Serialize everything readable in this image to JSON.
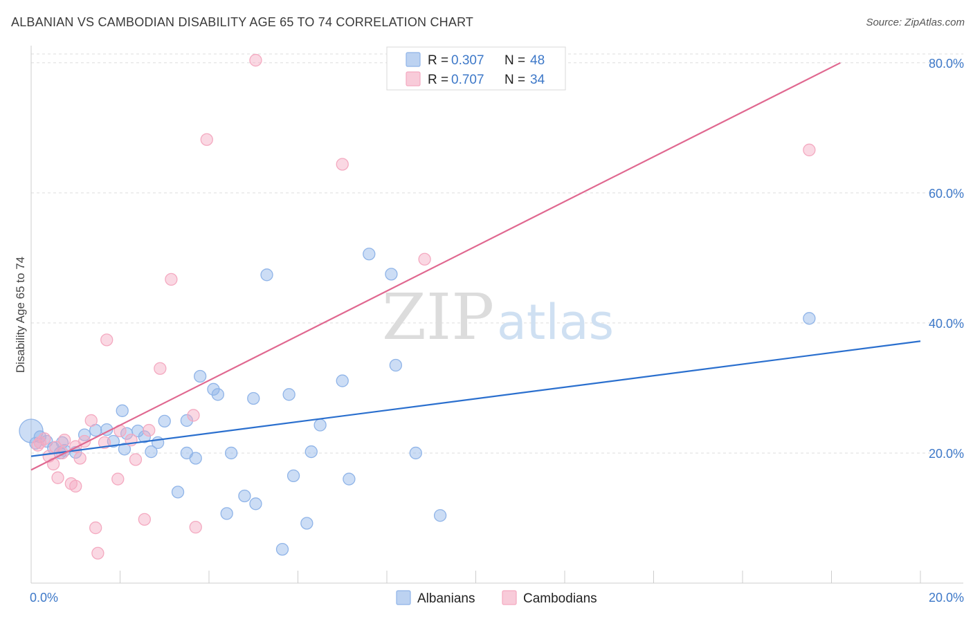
{
  "title": "ALBANIAN VS CAMBODIAN DISABILITY AGE 65 TO 74 CORRELATION CHART",
  "source": "Source: ZipAtlas.com",
  "watermark": {
    "zip": "ZIP",
    "atlas": "atlas"
  },
  "chart_data": {
    "type": "scatter",
    "title": "ALBANIAN VS CAMBODIAN DISABILITY AGE 65 TO 74 CORRELATION CHART",
    "xlabel": "",
    "ylabel": "Disability Age 65 to 74",
    "xlim": [
      0,
      20
    ],
    "ylim": [
      0,
      82
    ],
    "x_tick_labels": [
      {
        "value": 0,
        "label": "0.0%"
      },
      {
        "value": 20,
        "label": "20.0%"
      }
    ],
    "y_tick_labels": [
      {
        "value": 20,
        "label": "20.0%"
      },
      {
        "value": 40,
        "label": "40.0%"
      },
      {
        "value": 60,
        "label": "60.0%"
      },
      {
        "value": 80,
        "label": "80.0%"
      }
    ],
    "legend_stats": [
      {
        "r_label": "R = ",
        "r_value": "0.307",
        "n_label": "N = ",
        "n_value": "48"
      },
      {
        "r_label": "R = ",
        "r_value": "0.707",
        "n_label": "N = ",
        "n_value": "34"
      }
    ],
    "series": [
      {
        "name": "Albanians",
        "color": "#8fb4e8",
        "line_color": "#2a6fce",
        "trend": {
          "x0": 0,
          "y0": 19.5,
          "x1": 20,
          "y1": 37.2
        },
        "points": [
          [
            0.0,
            23.4,
            3
          ],
          [
            0.1,
            21.5,
            1
          ],
          [
            0.2,
            22.5,
            1
          ],
          [
            0.35,
            21.8,
            1
          ],
          [
            0.5,
            20.8,
            1
          ],
          [
            0.7,
            21.6,
            1
          ],
          [
            0.75,
            20.4,
            1
          ],
          [
            1.0,
            20.1,
            1
          ],
          [
            1.2,
            22.8,
            1
          ],
          [
            1.45,
            23.5,
            1
          ],
          [
            1.7,
            23.6,
            1
          ],
          [
            1.85,
            21.8,
            1
          ],
          [
            2.05,
            26.5,
            1
          ],
          [
            2.1,
            20.6,
            1
          ],
          [
            2.15,
            23.0,
            1
          ],
          [
            2.4,
            23.4,
            1
          ],
          [
            2.55,
            22.5,
            1
          ],
          [
            2.85,
            21.6,
            1
          ],
          [
            3.0,
            24.9,
            1
          ],
          [
            2.7,
            20.2,
            1
          ],
          [
            3.3,
            14.0,
            1
          ],
          [
            3.5,
            25.0,
            1
          ],
          [
            3.5,
            20.0,
            1
          ],
          [
            3.7,
            19.2,
            1
          ],
          [
            3.8,
            31.8,
            1
          ],
          [
            4.1,
            29.8,
            1
          ],
          [
            4.2,
            29.0,
            1
          ],
          [
            4.4,
            10.7,
            1
          ],
          [
            4.5,
            20.0,
            1
          ],
          [
            4.8,
            13.4,
            1
          ],
          [
            5.0,
            28.4,
            1
          ],
          [
            5.05,
            12.2,
            1
          ],
          [
            5.3,
            47.4,
            1
          ],
          [
            5.65,
            5.2,
            1
          ],
          [
            5.8,
            29.0,
            1
          ],
          [
            5.9,
            16.5,
            1
          ],
          [
            6.2,
            9.2,
            1
          ],
          [
            6.3,
            20.2,
            1
          ],
          [
            6.5,
            24.3,
            1
          ],
          [
            7.0,
            31.1,
            1
          ],
          [
            7.15,
            16.0,
            1
          ],
          [
            7.6,
            50.6,
            1
          ],
          [
            8.1,
            47.5,
            1
          ],
          [
            8.2,
            33.5,
            1
          ],
          [
            8.65,
            20.0,
            1
          ],
          [
            9.2,
            10.4,
            1
          ],
          [
            17.5,
            40.7,
            1
          ],
          [
            0.65,
            20.0,
            1
          ]
        ]
      },
      {
        "name": "Cambodians",
        "color": "#f4a9c0",
        "line_color": "#e06890",
        "trend": {
          "x0": 0,
          "y0": 17.4,
          "x1": 18.2,
          "y1": 80.0
        },
        "points": [
          [
            0.15,
            21.2,
            1
          ],
          [
            0.3,
            22.2,
            1
          ],
          [
            0.4,
            19.5,
            1
          ],
          [
            0.5,
            18.3,
            1
          ],
          [
            0.6,
            16.2,
            1
          ],
          [
            0.7,
            20.0,
            1
          ],
          [
            0.75,
            22.0,
            1
          ],
          [
            0.9,
            15.3,
            1
          ],
          [
            1.0,
            14.9,
            1
          ],
          [
            1.1,
            19.2,
            1
          ],
          [
            1.2,
            21.8,
            1
          ],
          [
            1.35,
            25.0,
            1
          ],
          [
            1.45,
            8.5,
            1
          ],
          [
            1.5,
            4.6,
            1
          ],
          [
            1.65,
            21.6,
            1
          ],
          [
            1.7,
            37.4,
            1
          ],
          [
            1.95,
            16.0,
            1
          ],
          [
            2.0,
            23.4,
            1
          ],
          [
            2.25,
            22.0,
            1
          ],
          [
            2.35,
            19.0,
            1
          ],
          [
            2.55,
            9.8,
            1
          ],
          [
            2.65,
            23.5,
            1
          ],
          [
            2.9,
            33.0,
            1
          ],
          [
            3.15,
            46.7,
            1
          ],
          [
            3.65,
            25.8,
            1
          ],
          [
            3.7,
            8.6,
            1
          ],
          [
            3.95,
            68.2,
            1
          ],
          [
            5.05,
            80.4,
            1
          ],
          [
            7.0,
            64.4,
            1
          ],
          [
            8.85,
            49.8,
            1
          ],
          [
            17.5,
            66.6,
            1
          ],
          [
            0.2,
            21.6,
            1
          ],
          [
            1.0,
            21.0,
            1
          ],
          [
            0.55,
            20.9,
            1
          ]
        ]
      }
    ]
  }
}
